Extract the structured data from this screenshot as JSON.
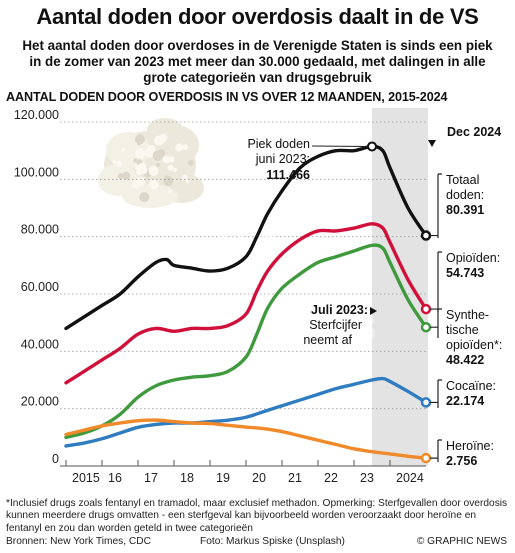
{
  "title": "Aantal doden door overdosis daalt in de VS",
  "subtitle": "Het aantal doden door overdoses in de Verenigde Staten is sinds een piek in de zomer van 2023 met meer dan 30.000 gedaald, met dalingen in alle grote categorieën van drugsgebruik",
  "chart_heading": "AANTAL DODEN DOOR OVERDOSIS IN VS OVER 12 MAANDEN, 2015-2024",
  "footnote": "*Inclusief drugs zoals fentanyl en tramadol, maar exclusief methadon. Opmerking: Sterfgevallen door overdosis kunnen meerdere drugs omvatten - een sterfgeval kan bijvoorbeeld worden veroorzaakt door heroïne en fentanyl en zou dan worden geteld in twee categorieën",
  "sources": "Bronnen: New York Times, CDC",
  "photo_credit": "Foto: Markus Spiske (Unsplash)",
  "credit": "© GRAPHIC NEWS",
  "watermark": "GRAPHIC NEWS",
  "colors": {
    "total": "#111111",
    "opioids": "#d0103a",
    "synthetic": "#3f9a3d",
    "cocaine": "#2f7cc0",
    "heroin": "#f08a2a",
    "shade": "#e3e3e3"
  },
  "chart_data": {
    "type": "line",
    "x_ticks": [
      "2015",
      "16",
      "17",
      "18",
      "19",
      "20",
      "21",
      "22",
      "23",
      "2024"
    ],
    "y_ticks": [
      "0",
      "20.000",
      "40.000",
      "60.000",
      "80.000",
      "100.000",
      "120.000"
    ],
    "ylim": [
      0,
      120000
    ],
    "xlim": [
      2015.0,
      2025.0
    ],
    "legend": "right-side labels",
    "series": [
      {
        "key": "total",
        "label_lines": [
          "Totaal",
          "doden:"
        ],
        "end_value": "80.391",
        "x": [
          2015.0,
          2015.5,
          2016.0,
          2016.5,
          2017.0,
          2017.5,
          2017.8,
          2018.0,
          2018.5,
          2019.0,
          2019.5,
          2020.0,
          2020.3,
          2020.6,
          2021.0,
          2021.5,
          2022.0,
          2022.5,
          2023.0,
          2023.5,
          2023.8,
          2024.0,
          2024.5,
          2025.0
        ],
        "y": [
          48000,
          52000,
          56000,
          60000,
          66000,
          71000,
          72000,
          70000,
          69000,
          68000,
          69000,
          73000,
          80000,
          88000,
          96000,
          104000,
          108000,
          110000,
          110000,
          111466,
          110000,
          104000,
          90000,
          80391
        ]
      },
      {
        "key": "opioids",
        "label_lines": [
          "Opioïden:"
        ],
        "end_value": "54.743",
        "x": [
          2015.0,
          2015.5,
          2016.0,
          2016.5,
          2017.0,
          2017.5,
          2018.0,
          2018.5,
          2019.0,
          2019.5,
          2020.0,
          2020.3,
          2020.6,
          2021.0,
          2021.5,
          2022.0,
          2022.5,
          2023.0,
          2023.5,
          2023.8,
          2024.0,
          2024.5,
          2025.0
        ],
        "y": [
          29000,
          33000,
          37000,
          41000,
          46000,
          48000,
          47000,
          48000,
          48000,
          49000,
          53000,
          61000,
          68000,
          74000,
          79000,
          82000,
          82000,
          83000,
          84500,
          83000,
          78000,
          65000,
          54743
        ]
      },
      {
        "key": "synthetic",
        "label_lines": [
          "Synthe-",
          "tische",
          "opioïden*:"
        ],
        "end_value": "48.422",
        "x": [
          2015.0,
          2015.5,
          2016.0,
          2016.5,
          2017.0,
          2017.5,
          2018.0,
          2018.5,
          2019.0,
          2019.5,
          2020.0,
          2020.3,
          2020.6,
          2021.0,
          2021.5,
          2022.0,
          2022.5,
          2023.0,
          2023.5,
          2023.8,
          2024.0,
          2024.5,
          2025.0
        ],
        "y": [
          10000,
          11500,
          14000,
          18000,
          24000,
          28000,
          30000,
          31000,
          31500,
          33000,
          38000,
          46000,
          55000,
          62000,
          67000,
          71000,
          73000,
          75000,
          77000,
          76000,
          71000,
          58000,
          48422
        ]
      },
      {
        "key": "cocaine",
        "label_lines": [
          "Cocaïne:"
        ],
        "end_value": "22.174",
        "x": [
          2015.0,
          2015.5,
          2016.0,
          2016.5,
          2017.0,
          2017.5,
          2018.0,
          2018.5,
          2019.0,
          2019.5,
          2020.0,
          2020.5,
          2021.0,
          2021.5,
          2022.0,
          2022.5,
          2023.0,
          2023.5,
          2023.8,
          2024.0,
          2024.5,
          2025.0
        ],
        "y": [
          7000,
          8000,
          9500,
          11500,
          13500,
          14500,
          15000,
          15000,
          15500,
          16000,
          17000,
          19000,
          21000,
          23000,
          25000,
          27000,
          28500,
          30000,
          30500,
          29500,
          26000,
          22174
        ]
      },
      {
        "key": "heroin",
        "label_lines": [
          "Heroïne:"
        ],
        "end_value": "2.756",
        "x": [
          2015.0,
          2015.5,
          2016.0,
          2016.5,
          2017.0,
          2017.5,
          2018.0,
          2018.5,
          2019.0,
          2019.5,
          2020.0,
          2020.5,
          2021.0,
          2021.5,
          2022.0,
          2022.5,
          2023.0,
          2023.5,
          2024.0,
          2024.5,
          2025.0
        ],
        "y": [
          11000,
          12500,
          14000,
          15000,
          15800,
          16000,
          15500,
          15000,
          14800,
          14200,
          13600,
          13000,
          12000,
          10500,
          9000,
          7500,
          6000,
          5000,
          4200,
          3400,
          2756
        ]
      }
    ],
    "annotations": {
      "peak_lines": [
        "Piek doden",
        "juni 2023:"
      ],
      "peak_value": "111.466",
      "dec_label": "Dec 2024",
      "july_bold": "Juli 2023:",
      "july_lines": [
        "Sterfcijfer",
        "neemt af"
      ]
    },
    "shaded_from": 2023.5
  }
}
